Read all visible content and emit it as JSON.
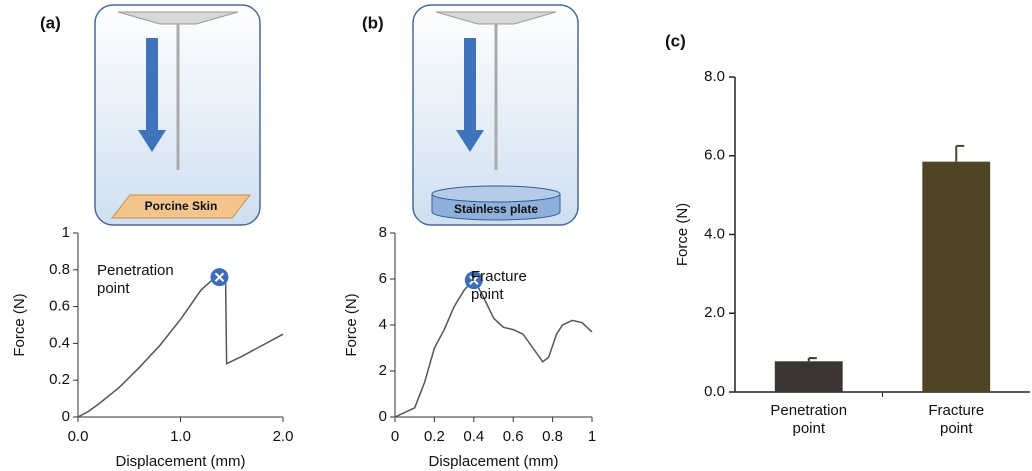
{
  "panel_labels": [
    "(a)",
    "(b)",
    "(c)"
  ],
  "diagrams": [
    {
      "label": "Porcine Skin"
    },
    {
      "label": "Stainless plate"
    }
  ],
  "chart_data": [
    {
      "type": "line",
      "xlabel": "Displacement (mm)",
      "ylabel": "Force (N)",
      "x": [
        0,
        0.1,
        0.2,
        0.4,
        0.6,
        0.8,
        1.0,
        1.1,
        1.2,
        1.3,
        1.38,
        1.44,
        1.45,
        1.6,
        1.8,
        2.0
      ],
      "values": [
        0,
        0.03,
        0.07,
        0.16,
        0.27,
        0.39,
        0.53,
        0.61,
        0.69,
        0.74,
        0.76,
        0.74,
        0.29,
        0.33,
        0.39,
        0.45
      ],
      "color": "#555555",
      "marker": {
        "x": 1.38,
        "y": 0.76,
        "color": "#3d6db5"
      },
      "annotation": "Penetration point",
      "xlim": [
        0,
        2
      ],
      "ylim": [
        0,
        1
      ],
      "xticks": [
        {
          "value": 0,
          "label": "0.0"
        },
        {
          "value": 1,
          "label": "1.0"
        },
        {
          "value": 2,
          "label": "2.0"
        }
      ],
      "yticks": [
        0,
        0.2,
        0.4,
        0.6,
        0.8,
        1
      ]
    },
    {
      "type": "line",
      "xlabel": "Displacement (mm)",
      "ylabel": "Force (N)",
      "x": [
        0,
        0.05,
        0.1,
        0.15,
        0.2,
        0.25,
        0.3,
        0.35,
        0.4,
        0.45,
        0.5,
        0.55,
        0.6,
        0.65,
        0.7,
        0.75,
        0.78,
        0.82,
        0.85,
        0.9,
        0.95,
        1.0
      ],
      "values": [
        0,
        0.2,
        0.4,
        1.5,
        3.0,
        3.8,
        4.8,
        5.5,
        6.0,
        5.2,
        4.3,
        3.9,
        3.8,
        3.6,
        3.0,
        2.4,
        2.6,
        3.6,
        4.0,
        4.2,
        4.1,
        3.7
      ],
      "color": "#555555",
      "marker": {
        "x": 0.4,
        "y": 5.95,
        "color": "#3d6db5"
      },
      "annotation": "Fracture point",
      "xlim": [
        0,
        1
      ],
      "ylim": [
        0,
        8
      ],
      "xticks": [
        0,
        0.2,
        0.4,
        0.6,
        0.8,
        1
      ],
      "yticks": [
        0,
        2,
        4,
        6,
        8
      ]
    },
    {
      "type": "bar",
      "ylabel": "Force (N)",
      "categories": [
        "Penetration point",
        "Fracture point"
      ],
      "values": [
        0.78,
        5.85
      ],
      "error": [
        0.08,
        0.4
      ],
      "colors": [
        "#3a3532",
        "#4f4526"
      ],
      "ylim": [
        0,
        8
      ],
      "yticks": [
        {
          "value": 0,
          "label": "0.0"
        },
        {
          "value": 2,
          "label": "2.0"
        },
        {
          "value": 4,
          "label": "4.0"
        },
        {
          "value": 6,
          "label": "6.0"
        },
        {
          "value": 8,
          "label": "8.0"
        }
      ]
    }
  ]
}
